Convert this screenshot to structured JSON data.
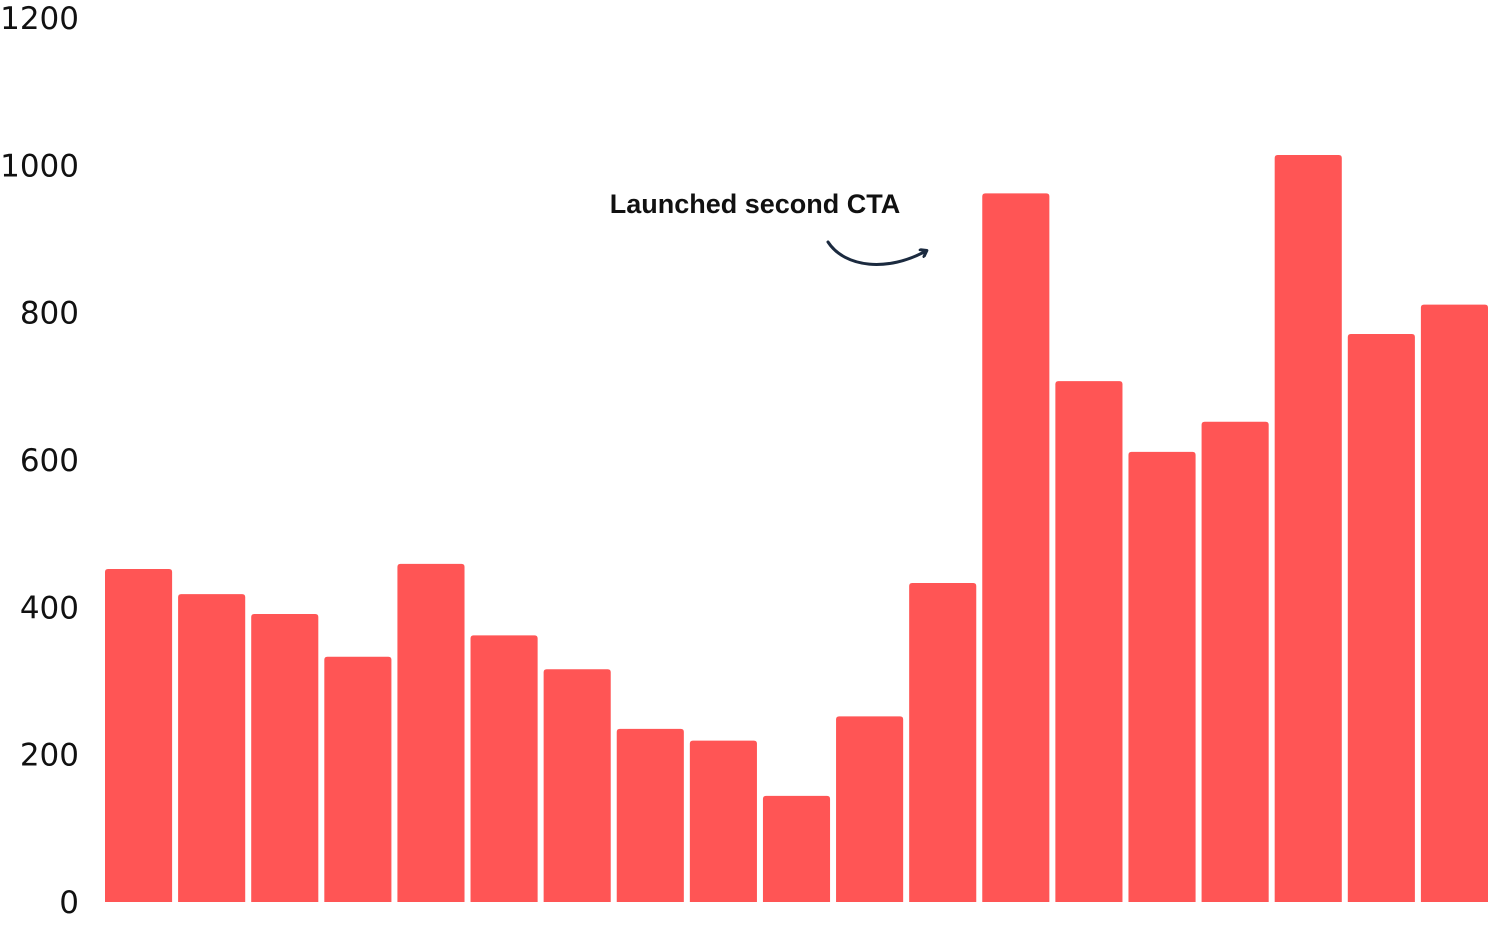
{
  "chart_data": {
    "type": "bar",
    "title": "",
    "xlabel": "",
    "ylabel": "",
    "ylim": [
      0,
      1200
    ],
    "yticks": [
      0,
      200,
      400,
      600,
      800,
      1000,
      1200
    ],
    "grid": false,
    "legend": "none",
    "values": [
      452,
      418,
      391,
      333,
      459,
      362,
      316,
      235,
      219,
      144,
      252,
      433,
      962,
      707,
      611,
      652,
      1014,
      771,
      811
    ],
    "bar_color": "#FF5555",
    "annotation": {
      "text": "Launched second CTA",
      "bar_index": 12
    }
  }
}
